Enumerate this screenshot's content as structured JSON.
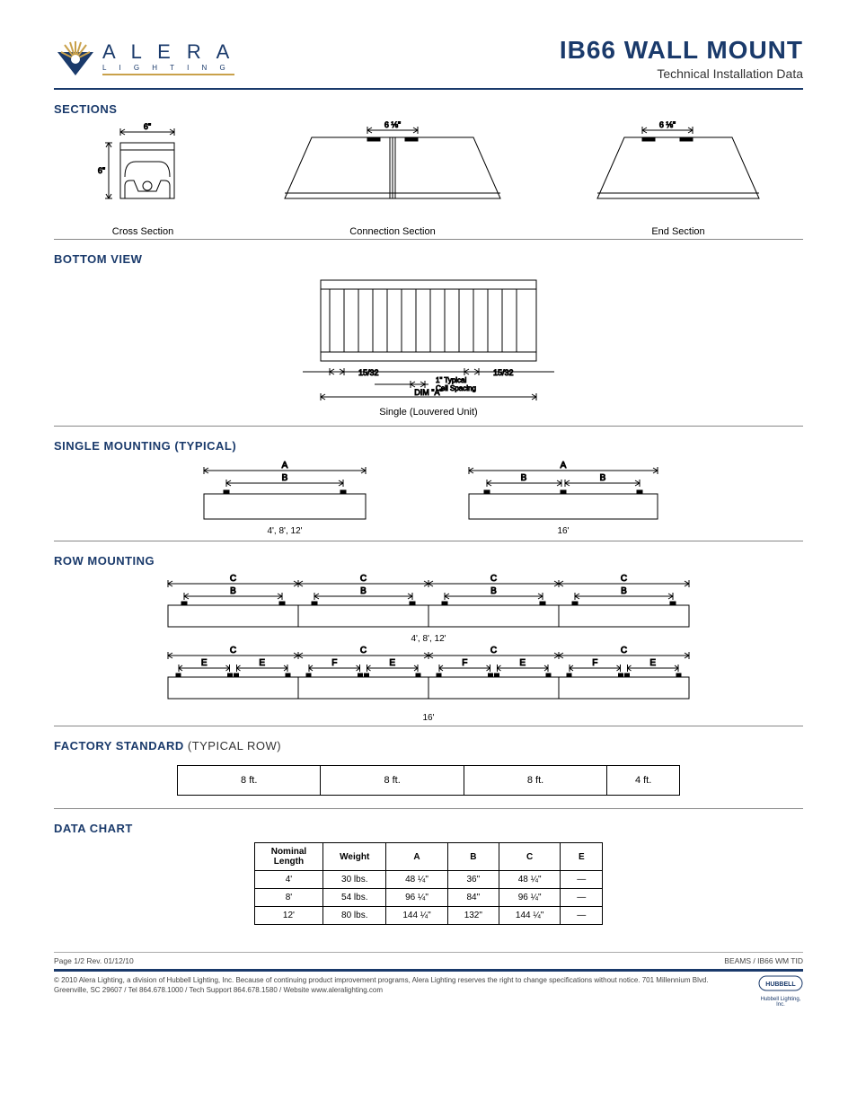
{
  "brand": {
    "name": "A L E R A",
    "tag": "L  I  G  H  T  I  N  G"
  },
  "title": "IB66 WALL MOUNT",
  "subtitle": "Technical Installation Data",
  "sections": {
    "heading": "SECTIONS",
    "cross": {
      "label": "Cross Section",
      "w": "6\"",
      "h": "6\""
    },
    "conn": {
      "label": "Connection Section",
      "dim": "6 ⅛\""
    },
    "end": {
      "label": "End Section",
      "dim": "6 ⅛\""
    }
  },
  "bottom": {
    "heading": "BOTTOM VIEW",
    "left_gap": "15/32",
    "right_gap": "15/32",
    "cell": "1\" Typical\nCell Spacing",
    "dim_a": "DIM \"A\"",
    "caption": "Single (Louvered Unit)"
  },
  "single_mount": {
    "heading": "SINGLE MOUNTING (TYPICAL)",
    "left_caption": "4', 8', 12'",
    "right_caption": "16'",
    "labels": {
      "A": "A",
      "B": "B"
    }
  },
  "row_mount": {
    "heading": "ROW MOUNTING",
    "top_caption": "4', 8', 12'",
    "bot_caption": "16'",
    "labels": {
      "B": "B",
      "C": "C",
      "E": "E",
      "F": "F"
    }
  },
  "factory": {
    "heading": "FACTORY STANDARD",
    "heading_suffix": " (TYPICAL ROW)",
    "cells": [
      "8 ft.",
      "8 ft.",
      "8 ft.",
      "4 ft."
    ],
    "widths": [
      160,
      160,
      160,
      80
    ]
  },
  "data_chart": {
    "heading": "DATA CHART",
    "columns": [
      "Nominal\nLength",
      "Weight",
      "A",
      "B",
      "C",
      "E"
    ],
    "rows": [
      [
        "4'",
        "30 lbs.",
        "48 ¼\"",
        "36\"",
        "48 ¼\"",
        "—"
      ],
      [
        "8'",
        "54 lbs.",
        "96 ¼\"",
        "84\"",
        "96 ¼\"",
        "—"
      ],
      [
        "12'",
        "80 lbs.",
        "144 ¼\"",
        "132\"",
        "144 ¼\"",
        "—"
      ]
    ]
  },
  "footer": {
    "page": "Page 1/2 Rev. 01/12/10",
    "right": "BEAMS / IB66 WM TID",
    "copy": "© 2010 Alera Lighting, a division of Hubbell Lighting, Inc. Because of continuing product improvement programs, Alera Lighting reserves the right to change specifications without notice. 701 Millennium Blvd. Greenville, SC 29607 / Tel 864.678.1000 / Tech Support 864.678.1580 / Website www.aleralighting.com",
    "hubbell": "HUBBELL",
    "hubbell_sub": "Hubbell Lighting, Inc."
  },
  "colors": {
    "brand_blue": "#1a3a6b",
    "brand_gold": "#c9a14a",
    "line": "#000000",
    "thin_line": "#888888"
  }
}
